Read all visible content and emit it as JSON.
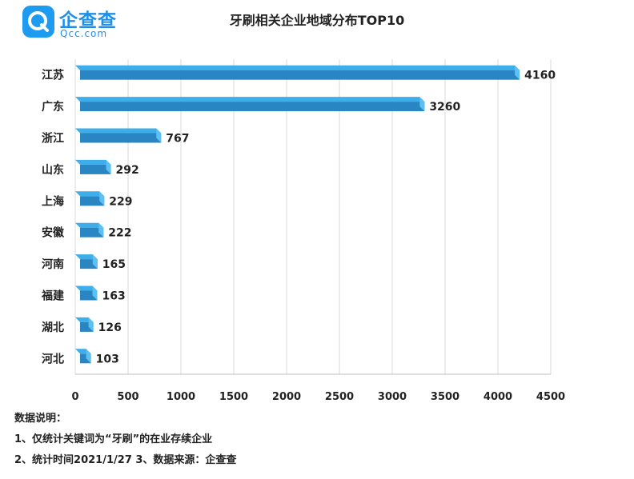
{
  "logo": {
    "name": "企查查",
    "sub": "Qcc.com"
  },
  "chart_data": {
    "type": "bar",
    "orientation": "horizontal",
    "title": "牙刷相关企业地域分布TOP10",
    "categories": [
      "江苏",
      "广东",
      "浙江",
      "山东",
      "上海",
      "安徽",
      "河南",
      "福建",
      "湖北",
      "河北"
    ],
    "values": [
      4160,
      3260,
      767,
      292,
      229,
      222,
      165,
      163,
      126,
      103
    ],
    "xlim": [
      0,
      4500
    ],
    "xticks": [
      "0",
      "500",
      "1000",
      "1500",
      "2000",
      "2500",
      "3000",
      "3500",
      "4000",
      "4500"
    ],
    "grid": true,
    "bar_color": "#3daee9",
    "bar_dark_color": "#2a86c2"
  },
  "notes": {
    "heading": "数据说明：",
    "line1": "1、仅统计关键词为“牙刷”的在业存续企业",
    "line2": "2、统计时间2021/1/27   3、数据来源：企查查"
  }
}
